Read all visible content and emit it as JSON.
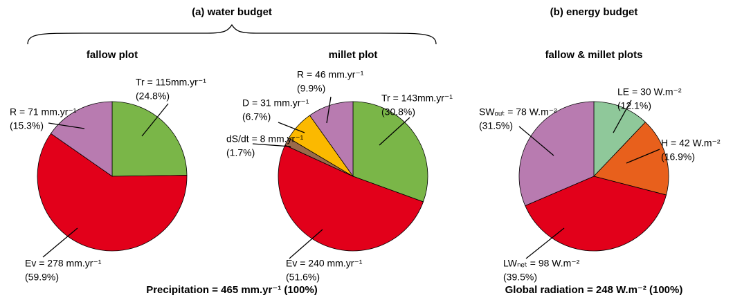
{
  "panels": [
    {
      "title": "(a) water budget",
      "footer": "Precipitation = 465 mm.yr⁻¹ (100%)"
    },
    {
      "title": "(b) energy budget",
      "footer": "Global radiation = 248 W.m⁻² (100%)"
    }
  ],
  "chart_data": [
    {
      "type": "pie",
      "title": "fallow plot",
      "values": [
        115,
        278,
        71
      ],
      "value_labels": [
        "Tr = 115mm.yr⁻¹",
        "Ev = 278 mm.yr⁻¹",
        "R = 71 mm.yr⁻¹"
      ],
      "percents": [
        24.8,
        59.9,
        15.3
      ],
      "percent_labels": [
        "(24.8%)",
        "(59.9%)",
        "(15.3%)"
      ],
      "colors": [
        "#7ab648",
        "#e2001a",
        "#b87bb0"
      ]
    },
    {
      "type": "pie",
      "title": "millet plot",
      "values": [
        143,
        240,
        8,
        31,
        46
      ],
      "value_labels": [
        "Tr = 143mm.yr⁻¹",
        "Ev = 240 mm.yr⁻¹",
        "dS/dt = 8 mm.yr⁻¹",
        "D = 31 mm.yr⁻¹",
        "R = 46 mm.yr⁻¹"
      ],
      "percents": [
        30.8,
        51.6,
        1.7,
        6.7,
        9.9
      ],
      "percent_labels": [
        "(30.8%)",
        "(51.6%)",
        "(1.7%)",
        "(6.7%)",
        "(9.9%)"
      ],
      "colors": [
        "#7ab648",
        "#e2001a",
        "#9b6a4a",
        "#fbb900",
        "#b87bb0"
      ]
    },
    {
      "type": "pie",
      "title": "fallow & millet plots",
      "values": [
        30,
        42,
        98,
        78
      ],
      "value_labels": [
        "LE = 30 W.m⁻²",
        "H = 42 W.m⁻²",
        "LWₙₑₜ = 98 W.m⁻²",
        "SWₒᵤₜ = 78 W.m⁻²"
      ],
      "percents": [
        12.1,
        16.9,
        39.5,
        31.5
      ],
      "percent_labels": [
        "(12.1%)",
        "(16.9%)",
        "(39.5%)",
        "(31.5%)"
      ],
      "colors": [
        "#8fc89a",
        "#e8601c",
        "#e2001a",
        "#b87bb0"
      ]
    }
  ]
}
